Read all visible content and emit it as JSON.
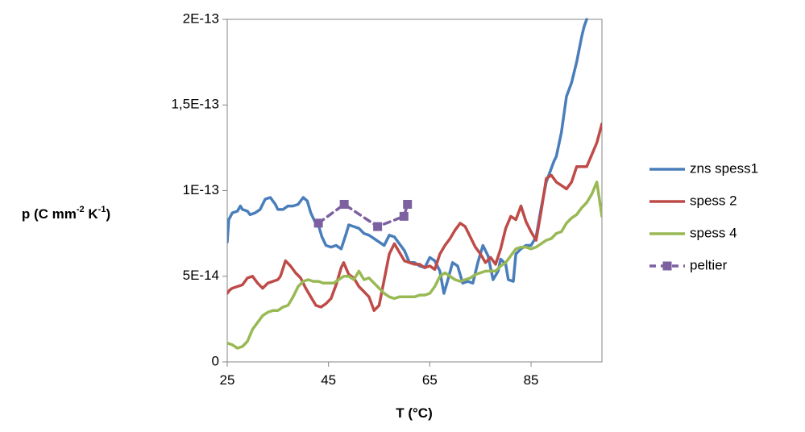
{
  "chart_data": {
    "type": "line",
    "xlabel": "T (°C)",
    "ylabel": "p (C mm-2 K-1)",
    "ylabel_parts": {
      "p1": "p (C mm",
      "sup1": "-2",
      "p2": " K",
      "sup2": "-1",
      "p3": ")"
    },
    "xlim": [
      25,
      99
    ],
    "ylim": [
      0,
      2e-13
    ],
    "x_ticks": [
      {
        "v": 25,
        "label": "25"
      },
      {
        "v": 45,
        "label": "45"
      },
      {
        "v": 65,
        "label": "65"
      },
      {
        "v": 85,
        "label": "85"
      }
    ],
    "y_ticks": [
      {
        "v": 0,
        "label": "0"
      },
      {
        "v": 5e-14,
        "label": "5E-14"
      },
      {
        "v": 1e-13,
        "label": "1E-13"
      },
      {
        "v": 1.5e-13,
        "label": "1,5E-13"
      },
      {
        "v": 2e-13,
        "label": "2E-13"
      }
    ],
    "grid": false,
    "legend_position": "right",
    "series": [
      {
        "name": "zns spess1",
        "color": "#4a7ebb",
        "style": "solid",
        "markers": false,
        "points": [
          [
            25,
            7e-14
          ],
          [
            25.3,
            8.3e-14
          ],
          [
            26,
            8.7e-14
          ],
          [
            27,
            8.8e-14
          ],
          [
            27.6,
            9.1e-14
          ],
          [
            28,
            8.9e-14
          ],
          [
            29,
            8.8e-14
          ],
          [
            29.5,
            8.6e-14
          ],
          [
            30.5,
            8.7e-14
          ],
          [
            31.5,
            8.9e-14
          ],
          [
            32.5,
            9.5e-14
          ],
          [
            33.5,
            9.6e-14
          ],
          [
            34.5,
            9.2e-14
          ],
          [
            35,
            8.9e-14
          ],
          [
            36,
            8.9e-14
          ],
          [
            37,
            9.1e-14
          ],
          [
            38,
            9.1e-14
          ],
          [
            39,
            9.2e-14
          ],
          [
            40,
            9.6e-14
          ],
          [
            40.8,
            9.4e-14
          ],
          [
            41.5,
            8.7e-14
          ],
          [
            42.3,
            8.2e-14
          ],
          [
            43,
            8e-14
          ],
          [
            43.7,
            7.3e-14
          ],
          [
            44.5,
            6.8e-14
          ],
          [
            45.5,
            6.7e-14
          ],
          [
            46.5,
            6.8e-14
          ],
          [
            47.5,
            6.6e-14
          ],
          [
            48.5,
            7.5e-14
          ],
          [
            49,
            8e-14
          ],
          [
            50,
            7.9e-14
          ],
          [
            51,
            7.8e-14
          ],
          [
            52,
            7.5e-14
          ],
          [
            53,
            7.4e-14
          ],
          [
            54,
            7.2e-14
          ],
          [
            55,
            7e-14
          ],
          [
            56,
            6.8e-14
          ],
          [
            57,
            7.4e-14
          ],
          [
            58,
            7.3e-14
          ],
          [
            59,
            6.9e-14
          ],
          [
            60,
            6.5e-14
          ],
          [
            61,
            5.8e-14
          ],
          [
            62,
            5.8e-14
          ],
          [
            63,
            5.6e-14
          ],
          [
            64,
            5.5e-14
          ],
          [
            65,
            6.1e-14
          ],
          [
            66,
            5.9e-14
          ],
          [
            67,
            5.3e-14
          ],
          [
            67.8,
            4e-14
          ],
          [
            68.5,
            4.7e-14
          ],
          [
            69.5,
            5.8e-14
          ],
          [
            70.5,
            5.6e-14
          ],
          [
            71.5,
            4.6e-14
          ],
          [
            72.5,
            4.7e-14
          ],
          [
            73.5,
            4.6e-14
          ],
          [
            74.5,
            5.8e-14
          ],
          [
            75.5,
            6.8e-14
          ],
          [
            76.5,
            6.2e-14
          ],
          [
            77.5,
            4.8e-14
          ],
          [
            78.5,
            5.3e-14
          ],
          [
            79,
            6e-14
          ],
          [
            80,
            5.7e-14
          ],
          [
            80.5,
            4.8e-14
          ],
          [
            81.5,
            4.7e-14
          ],
          [
            82,
            6.3e-14
          ],
          [
            83,
            6.6e-14
          ],
          [
            84,
            6.8e-14
          ],
          [
            85,
            6.8e-14
          ],
          [
            86,
            7.3e-14
          ],
          [
            87,
            9e-14
          ],
          [
            88,
            1.05e-13
          ],
          [
            89,
            1.13e-13
          ],
          [
            89.5,
            1.17e-13
          ],
          [
            90,
            1.2e-13
          ],
          [
            91,
            1.34e-13
          ],
          [
            92,
            1.55e-13
          ],
          [
            93,
            1.63e-13
          ],
          [
            94,
            1.75e-13
          ],
          [
            95,
            1.9e-13
          ],
          [
            95.5,
            1.96e-13
          ],
          [
            96,
            2e-13
          ]
        ]
      },
      {
        "name": "spess 2",
        "color": "#be4b48",
        "style": "solid",
        "markers": false,
        "points": [
          [
            25,
            4e-14
          ],
          [
            25.5,
            4.2e-14
          ],
          [
            26,
            4.3e-14
          ],
          [
            27,
            4.4e-14
          ],
          [
            28,
            4.5e-14
          ],
          [
            29,
            4.9e-14
          ],
          [
            30,
            5e-14
          ],
          [
            31,
            4.6e-14
          ],
          [
            32,
            4.3e-14
          ],
          [
            33,
            4.6e-14
          ],
          [
            34,
            4.7e-14
          ],
          [
            35,
            4.8e-14
          ],
          [
            35.5,
            5e-14
          ],
          [
            36.5,
            5.9e-14
          ],
          [
            37.5,
            5.6e-14
          ],
          [
            38.5,
            5.2e-14
          ],
          [
            39.5,
            4.9e-14
          ],
          [
            40.5,
            4.3e-14
          ],
          [
            41.5,
            3.8e-14
          ],
          [
            42.5,
            3.3e-14
          ],
          [
            43.5,
            3.2e-14
          ],
          [
            44.5,
            3.4e-14
          ],
          [
            45.5,
            3.7e-14
          ],
          [
            46.5,
            4.5e-14
          ],
          [
            47.5,
            5.5e-14
          ],
          [
            48,
            5.8e-14
          ],
          [
            49,
            5.1e-14
          ],
          [
            50,
            4.9e-14
          ],
          [
            51,
            4.4e-14
          ],
          [
            52,
            4.1e-14
          ],
          [
            53,
            3.8e-14
          ],
          [
            54,
            3e-14
          ],
          [
            55,
            3.3e-14
          ],
          [
            56,
            4.8e-14
          ],
          [
            57,
            6.3e-14
          ],
          [
            58,
            6.9e-14
          ],
          [
            59,
            6.4e-14
          ],
          [
            60,
            5.9e-14
          ],
          [
            61,
            5.8e-14
          ],
          [
            62,
            5.7e-14
          ],
          [
            63,
            5.7e-14
          ],
          [
            64,
            5.5e-14
          ],
          [
            65,
            5.6e-14
          ],
          [
            66,
            5.4e-14
          ],
          [
            67,
            6.3e-14
          ],
          [
            68,
            6.8e-14
          ],
          [
            69,
            7.2e-14
          ],
          [
            70,
            7.7e-14
          ],
          [
            71,
            8.1e-14
          ],
          [
            72,
            7.9e-14
          ],
          [
            73,
            7.3e-14
          ],
          [
            74,
            6.7e-14
          ],
          [
            75,
            6.3e-14
          ],
          [
            76,
            5.8e-14
          ],
          [
            77,
            6.1e-14
          ],
          [
            78,
            5.7e-14
          ],
          [
            79,
            6.6e-14
          ],
          [
            80,
            7.8e-14
          ],
          [
            81,
            8.5e-14
          ],
          [
            82,
            8.3e-14
          ],
          [
            83,
            9.1e-14
          ],
          [
            84,
            8.2e-14
          ],
          [
            85,
            7.6e-14
          ],
          [
            86,
            7.1e-14
          ],
          [
            87,
            8.8e-14
          ],
          [
            88,
            1.07e-13
          ],
          [
            89,
            1.09e-13
          ],
          [
            90,
            1.05e-13
          ],
          [
            91,
            1.03e-13
          ],
          [
            92,
            1.01e-13
          ],
          [
            93,
            1.05e-13
          ],
          [
            94,
            1.14e-13
          ],
          [
            95,
            1.14e-13
          ],
          [
            96,
            1.14e-13
          ],
          [
            97,
            1.21e-13
          ],
          [
            98,
            1.28e-13
          ],
          [
            99,
            1.39e-13
          ]
        ]
      },
      {
        "name": "spess 4",
        "color": "#98b954",
        "style": "solid",
        "markers": false,
        "points": [
          [
            25,
            1.1e-14
          ],
          [
            26,
            1e-14
          ],
          [
            27,
            8e-15
          ],
          [
            28,
            9e-15
          ],
          [
            29,
            1.2e-14
          ],
          [
            30,
            1.9e-14
          ],
          [
            31,
            2.3e-14
          ],
          [
            32,
            2.7e-14
          ],
          [
            33,
            2.9e-14
          ],
          [
            34,
            3e-14
          ],
          [
            35,
            3e-14
          ],
          [
            36,
            3.2e-14
          ],
          [
            37,
            3.3e-14
          ],
          [
            38,
            3.8e-14
          ],
          [
            39,
            4.4e-14
          ],
          [
            40,
            4.7e-14
          ],
          [
            41,
            4.8e-14
          ],
          [
            42,
            4.7e-14
          ],
          [
            43,
            4.7e-14
          ],
          [
            44,
            4.6e-14
          ],
          [
            45,
            4.6e-14
          ],
          [
            46,
            4.6e-14
          ],
          [
            47,
            4.8e-14
          ],
          [
            48,
            5e-14
          ],
          [
            49,
            5e-14
          ],
          [
            50,
            4.8e-14
          ],
          [
            51,
            5.3e-14
          ],
          [
            52,
            4.8e-14
          ],
          [
            53,
            4.9e-14
          ],
          [
            54,
            4.6e-14
          ],
          [
            55,
            4.3e-14
          ],
          [
            56,
            4e-14
          ],
          [
            57,
            3.8e-14
          ],
          [
            58,
            3.7e-14
          ],
          [
            59,
            3.8e-14
          ],
          [
            60,
            3.8e-14
          ],
          [
            61,
            3.8e-14
          ],
          [
            62,
            3.8e-14
          ],
          [
            63,
            3.9e-14
          ],
          [
            64,
            3.9e-14
          ],
          [
            65,
            4e-14
          ],
          [
            66,
            4.4e-14
          ],
          [
            67,
            5e-14
          ],
          [
            68,
            5.2e-14
          ],
          [
            69,
            5e-14
          ],
          [
            70,
            4.8e-14
          ],
          [
            71,
            4.7e-14
          ],
          [
            72,
            4.8e-14
          ],
          [
            73,
            4.9e-14
          ],
          [
            74,
            5.1e-14
          ],
          [
            75,
            5.2e-14
          ],
          [
            76,
            5.3e-14
          ],
          [
            77,
            5.3e-14
          ],
          [
            78,
            5.3e-14
          ],
          [
            79,
            5.6e-14
          ],
          [
            80,
            5.8e-14
          ],
          [
            81,
            6.2e-14
          ],
          [
            82,
            6.6e-14
          ],
          [
            83,
            6.7e-14
          ],
          [
            84,
            6.7e-14
          ],
          [
            85,
            6.6e-14
          ],
          [
            86,
            6.7e-14
          ],
          [
            87,
            6.9e-14
          ],
          [
            88,
            7.1e-14
          ],
          [
            89,
            7.2e-14
          ],
          [
            90,
            7.5e-14
          ],
          [
            91,
            7.6e-14
          ],
          [
            92,
            8.1e-14
          ],
          [
            93,
            8.4e-14
          ],
          [
            94,
            8.6e-14
          ],
          [
            95,
            9e-14
          ],
          [
            96,
            9.3e-14
          ],
          [
            97,
            9.8e-14
          ],
          [
            98,
            1.05e-13
          ],
          [
            99,
            8.5e-14
          ]
        ]
      },
      {
        "name": "peltier",
        "color": "#7d60a0",
        "style": "dashed",
        "markers": true,
        "points": [
          [
            43,
            8.1e-14
          ],
          [
            48.1,
            9.2e-14
          ],
          [
            54.7,
            7.9e-14
          ],
          [
            59.9,
            8.5e-14
          ],
          [
            60.6,
            9.2e-14
          ]
        ]
      }
    ]
  }
}
